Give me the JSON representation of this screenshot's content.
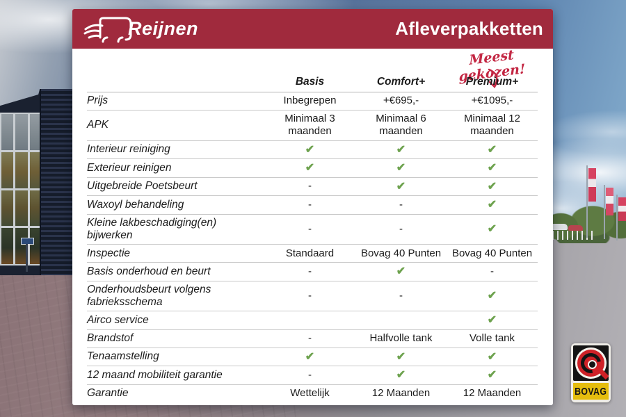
{
  "header": {
    "brand": "Reijnen",
    "title": "Afleverpakketten"
  },
  "annotation": {
    "text": "Meest gekozen!"
  },
  "table": {
    "columns": [
      "Basis",
      "Comfort+",
      "Premium+"
    ],
    "rows": [
      {
        "label": "Prijs",
        "cells": [
          "Inbegrepen",
          "+€695,-",
          "+€1095,-"
        ]
      },
      {
        "label": "APK",
        "cells": [
          "Minimaal 3 maanden",
          "Minimaal 6 maanden",
          "Minimaal 12 maanden"
        ]
      },
      {
        "label": "Interieur reiniging",
        "cells": [
          "✔",
          "✔",
          "✔"
        ]
      },
      {
        "label": "Exterieur reinigen",
        "cells": [
          "✔",
          "✔",
          "✔"
        ]
      },
      {
        "label": "Uitgebreide Poetsbeurt",
        "cells": [
          "-",
          "✔",
          "✔"
        ]
      },
      {
        "label": "Waxoyl behandeling",
        "cells": [
          "-",
          "-",
          "✔"
        ]
      },
      {
        "label": "Kleine lakbeschadiging(en) bijwerken",
        "cells": [
          "-",
          "-",
          "✔"
        ]
      },
      {
        "label": "Inspectie",
        "cells": [
          "Standaard",
          "Bovag 40 Punten",
          "Bovag 40 Punten"
        ]
      },
      {
        "label": "Basis onderhoud en beurt",
        "cells": [
          "-",
          "✔",
          "-"
        ]
      },
      {
        "label": "Onderhoudsbeurt volgens fabrieksschema",
        "cells": [
          "-",
          "-",
          "✔"
        ]
      },
      {
        "label": "Airco service",
        "cells": [
          "",
          "",
          "✔"
        ]
      },
      {
        "label": "Brandstof",
        "cells": [
          "-",
          "Halfvolle tank",
          "Volle tank"
        ]
      },
      {
        "label": "Tenaamstelling",
        "cells": [
          "✔",
          "✔",
          "✔"
        ]
      },
      {
        "label": "12 maand mobiliteit garantie",
        "cells": [
          "-",
          "✔",
          "✔"
        ]
      },
      {
        "label": "Garantie",
        "cells": [
          "Wettelijk",
          "12 Maanden",
          "12 Maanden"
        ]
      }
    ]
  },
  "badge": {
    "label": "BOVAG"
  },
  "icons": {
    "check_glyph": "✔",
    "car_logo": "car-icon",
    "arrow": "curved-arrow-down-icon"
  },
  "colors": {
    "header_red": "#a02a3d",
    "annotation_red": "#c32743",
    "check_green": "#6da24e",
    "bovag_yellow": "#e5bd0e",
    "bovag_red": "#cf2127"
  }
}
